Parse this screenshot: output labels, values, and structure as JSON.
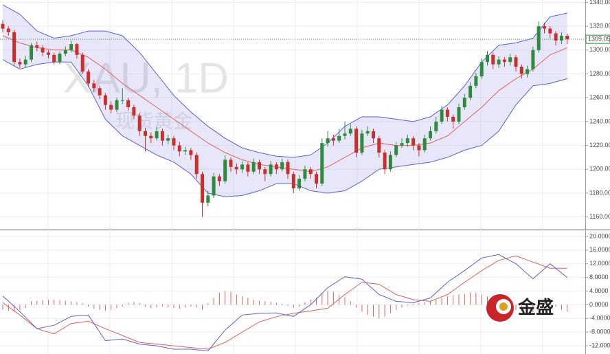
{
  "logo": "金盛",
  "chart_data": [
    {
      "type": "candlestick",
      "watermark_title": "XAU, 1D",
      "watermark_subtitle": "现货黄金",
      "up_color": "#2e8b3e",
      "down_color": "#c8302e",
      "open": [
        1322,
        1318,
        1315,
        1290,
        1288,
        1292,
        1304,
        1302,
        1298,
        1296,
        1290,
        1297,
        1300,
        1305,
        1296,
        1282,
        1272,
        1268,
        1262,
        1254,
        1250,
        1258,
        1258,
        1252,
        1245,
        1232,
        1228,
        1226,
        1232,
        1224,
        1226,
        1220,
        1215,
        1216,
        1212,
        1196,
        1172,
        1178,
        1194,
        1190,
        1208,
        1202,
        1200,
        1204,
        1198,
        1206,
        1200,
        1196,
        1204,
        1200,
        1206,
        1196,
        1184,
        1192,
        1200,
        1196,
        1188,
        1222,
        1226,
        1224,
        1228,
        1230,
        1234,
        1214,
        1230,
        1232,
        1226,
        1214,
        1200,
        1212,
        1220,
        1222,
        1226,
        1220,
        1216,
        1226,
        1232,
        1240,
        1250,
        1244,
        1240,
        1252,
        1260,
        1270,
        1278,
        1290,
        1296,
        1288,
        1292,
        1290,
        1294,
        1286,
        1280,
        1284,
        1300,
        1320,
        1318,
        1314,
        1308,
        1312
      ],
      "high": [
        1325,
        1320,
        1317,
        1293,
        1295,
        1306,
        1307,
        1304,
        1300,
        1298,
        1299,
        1303,
        1308,
        1306,
        1298,
        1284,
        1275,
        1270,
        1264,
        1257,
        1260,
        1268,
        1260,
        1254,
        1247,
        1235,
        1231,
        1236,
        1234,
        1229,
        1228,
        1223,
        1219,
        1218,
        1214,
        1198,
        1182,
        1197,
        1196,
        1212,
        1210,
        1205,
        1207,
        1206,
        1209,
        1208,
        1202,
        1207,
        1206,
        1209,
        1208,
        1198,
        1195,
        1203,
        1202,
        1198,
        1226,
        1232,
        1229,
        1234,
        1240,
        1238,
        1236,
        1233,
        1236,
        1234,
        1228,
        1216,
        1215,
        1223,
        1226,
        1229,
        1228,
        1222,
        1229,
        1236,
        1244,
        1253,
        1252,
        1246,
        1255,
        1263,
        1273,
        1281,
        1293,
        1299,
        1298,
        1295,
        1294,
        1297,
        1296,
        1288,
        1287,
        1303,
        1324,
        1323,
        1320,
        1316,
        1315,
        1314
      ],
      "low": [
        1315,
        1312,
        1287,
        1285,
        1286,
        1290,
        1299,
        1295,
        1293,
        1288,
        1288,
        1295,
        1298,
        1293,
        1280,
        1269,
        1265,
        1259,
        1250,
        1247,
        1248,
        1255,
        1249,
        1242,
        1228,
        1215,
        1222,
        1224,
        1220,
        1221,
        1216,
        1211,
        1212,
        1208,
        1192,
        1160,
        1169,
        1176,
        1186,
        1188,
        1198,
        1196,
        1197,
        1194,
        1196,
        1196,
        1190,
        1194,
        1196,
        1198,
        1192,
        1180,
        1182,
        1190,
        1192,
        1184,
        1186,
        1219,
        1220,
        1222,
        1225,
        1228,
        1210,
        1212,
        1228,
        1222,
        1210,
        1196,
        1198,
        1210,
        1218,
        1219,
        1216,
        1211,
        1214,
        1224,
        1230,
        1238,
        1240,
        1234,
        1238,
        1250,
        1258,
        1268,
        1276,
        1287,
        1284,
        1285,
        1286,
        1287,
        1282,
        1276,
        1277,
        1282,
        1298,
        1314,
        1310,
        1304,
        1305,
        1305
      ],
      "close": [
        1318,
        1315,
        1290,
        1288,
        1292,
        1304,
        1302,
        1298,
        1296,
        1290,
        1297,
        1300,
        1305,
        1296,
        1282,
        1272,
        1268,
        1262,
        1254,
        1250,
        1258,
        1258,
        1252,
        1245,
        1232,
        1228,
        1226,
        1232,
        1224,
        1226,
        1220,
        1215,
        1216,
        1212,
        1196,
        1172,
        1178,
        1194,
        1190,
        1208,
        1202,
        1200,
        1204,
        1198,
        1206,
        1200,
        1196,
        1204,
        1200,
        1206,
        1196,
        1184,
        1192,
        1200,
        1196,
        1188,
        1222,
        1226,
        1224,
        1228,
        1230,
        1234,
        1214,
        1230,
        1232,
        1226,
        1214,
        1200,
        1212,
        1220,
        1222,
        1226,
        1220,
        1216,
        1226,
        1232,
        1240,
        1250,
        1244,
        1240,
        1252,
        1260,
        1270,
        1278,
        1290,
        1296,
        1288,
        1292,
        1290,
        1294,
        1286,
        1280,
        1284,
        1300,
        1320,
        1318,
        1314,
        1308,
        1312,
        1309
      ],
      "bands": {
        "band_color": "#5b5fd6",
        "middle_color": "#e0605a",
        "x": [
          0,
          3,
          6,
          9,
          12,
          15,
          18,
          21,
          24,
          27,
          30,
          33,
          36,
          39,
          42,
          45,
          48,
          51,
          54,
          57,
          60,
          63,
          66,
          69,
          72,
          75,
          78,
          81,
          84,
          87,
          90,
          93,
          96,
          99
        ],
        "upper": [
          1338,
          1330,
          1316,
          1310,
          1312,
          1316,
          1316,
          1312,
          1298,
          1280,
          1262,
          1248,
          1236,
          1226,
          1218,
          1214,
          1211,
          1210,
          1212,
          1222,
          1236,
          1244,
          1244,
          1242,
          1240,
          1244,
          1254,
          1270,
          1290,
          1304,
          1306,
          1310,
          1328,
          1331
        ],
        "middle": [
          1312,
          1306,
          1302,
          1300,
          1300,
          1294,
          1284,
          1272,
          1262,
          1252,
          1242,
          1232,
          1222,
          1214,
          1208,
          1204,
          1202,
          1200,
          1198,
          1202,
          1210,
          1218,
          1222,
          1220,
          1220,
          1222,
          1228,
          1240,
          1252,
          1266,
          1276,
          1284,
          1296,
          1302
        ],
        "lower": [
          1292,
          1284,
          1288,
          1290,
          1290,
          1270,
          1242,
          1228,
          1220,
          1212,
          1206,
          1196,
          1180,
          1177,
          1178,
          1182,
          1188,
          1188,
          1182,
          1180,
          1182,
          1190,
          1200,
          1202,
          1204,
          1206,
          1210,
          1216,
          1220,
          1232,
          1254,
          1270,
          1272,
          1276
        ]
      },
      "last_price": 1309.05,
      "ylim": [
        1150,
        1342
      ],
      "yticks": [
        {
          "value": 1160,
          "label": "1160.00"
        },
        {
          "value": 1180,
          "label": "1180.00"
        },
        {
          "value": 1200,
          "label": "1200.00"
        },
        {
          "value": 1220,
          "label": "1220.00"
        },
        {
          "value": 1240,
          "label": "1240.00"
        },
        {
          "value": 1260,
          "label": "1260.00"
        },
        {
          "value": 1280,
          "label": "1280.00"
        },
        {
          "value": 1300,
          "label": "1300.00"
        },
        {
          "value": 1320,
          "label": "1320.00"
        },
        {
          "value": 1340,
          "label": "1340.00"
        }
      ]
    },
    {
      "type": "macd",
      "x": [
        0,
        3,
        6,
        9,
        12,
        15,
        18,
        21,
        24,
        27,
        30,
        33,
        36,
        39,
        42,
        45,
        48,
        51,
        54,
        57,
        60,
        63,
        66,
        69,
        72,
        75,
        78,
        81,
        84,
        87,
        90,
        93,
        96,
        99
      ],
      "macd": {
        "color": "#5b5fd6",
        "values": [
          2.6,
          -2,
          -7,
          -6,
          -3.4,
          -3,
          -10.5,
          -10,
          -11.5,
          -12,
          -13,
          -13,
          -13.5,
          -7.4,
          -3,
          -2.5,
          -2.4,
          -3.4,
          0,
          5,
          8.2,
          7.5,
          3,
          1,
          0.6,
          2,
          6.6,
          10,
          13.7,
          14.7,
          12,
          7.6,
          12,
          8
        ]
      },
      "signal": {
        "color": "#e0605a",
        "values": [
          0.6,
          -3,
          -7,
          -8.5,
          -5.5,
          -4.8,
          -7,
          -9,
          -11,
          -11.5,
          -12,
          -12.5,
          -13,
          -11,
          -8,
          -5,
          -3.5,
          -2.5,
          -1.8,
          -1,
          3,
          6.6,
          6,
          3,
          1.5,
          1,
          3,
          6.6,
          10,
          13,
          14.3,
          12.5,
          10.7,
          10.7
        ]
      },
      "histogram": {
        "color": "#e0605a",
        "values": [
          -1.5,
          -1.8,
          -2,
          -1.5,
          -1,
          1,
          1.2,
          1.4,
          1.5,
          1.5,
          1.4,
          1.2,
          1,
          0.8,
          0.5,
          -0.5,
          -1.2,
          -1.5,
          -1.8,
          -1.5,
          -1,
          -0.5,
          0.5,
          0.8,
          0.5,
          -0.5,
          -1,
          -0.8,
          -0.5,
          -0.8,
          -1,
          -1.2,
          -0.8,
          -0.5,
          -0.8,
          -1.5,
          0.5,
          2,
          3.5,
          4,
          3.8,
          3,
          2.5,
          2,
          1.5,
          1.2,
          1,
          0.8,
          0.5,
          0.3,
          -0.3,
          -0.8,
          -0.5,
          0.8,
          1.5,
          2,
          3.5,
          4,
          3.8,
          3,
          2.2,
          1,
          -0.8,
          -2,
          -3,
          -3.5,
          -4,
          -3.5,
          -2.5,
          -1.5,
          -0.8,
          -0.3,
          0.3,
          0.5,
          0.8,
          1,
          1.5,
          2,
          2.5,
          2.8,
          3,
          3.2,
          3.5,
          3.5,
          3,
          2.5,
          2,
          1,
          0.5,
          -0.8,
          -1.5,
          -2,
          -2.5,
          -2.2,
          -1.5,
          0.8,
          1,
          -0.5,
          -1.5,
          -2
        ]
      },
      "ylim": [
        -14.4,
        21.6
      ],
      "yticks": [
        {
          "value": -12,
          "label": "-12.0000"
        },
        {
          "value": -8,
          "label": "-8.0000"
        },
        {
          "value": -4,
          "label": "-4.0000"
        },
        {
          "value": 0,
          "label": "0.0000"
        },
        {
          "value": 4,
          "label": "4.0000"
        },
        {
          "value": 8,
          "label": "8.0000"
        },
        {
          "value": 12,
          "label": "12.0000"
        },
        {
          "value": 16,
          "label": "16.0000"
        },
        {
          "value": 20,
          "label": "20.0000"
        }
      ]
    }
  ]
}
